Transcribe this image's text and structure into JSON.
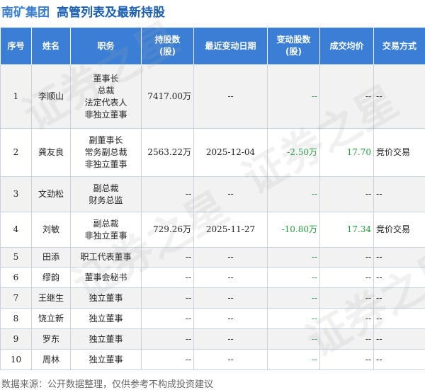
{
  "title": {
    "company": "南矿集团",
    "text": "高管列表及最新持股"
  },
  "watermark": "证券之星",
  "columns": [
    "序号",
    "姓名",
    "职务",
    "持股数\n(股)",
    "最近变动日期",
    "变动股数\n(股)",
    "成交均价",
    "交易方式"
  ],
  "rows": [
    {
      "no": "1",
      "name": "李顺山",
      "roles": [
        "董事长",
        "总裁",
        "法定代表人",
        "非独立董事"
      ],
      "shares": "7417.00万",
      "date": "--",
      "change": "--",
      "price": "--",
      "method": "--"
    },
    {
      "no": "2",
      "name": "龚友良",
      "roles": [
        "副董事长",
        "常务副总裁",
        "非独立董事"
      ],
      "shares": "2563.22万",
      "date": "2025-12-04",
      "change": "-2.50万",
      "price": "17.70",
      "method": "竞价交易"
    },
    {
      "no": "3",
      "name": "文劲松",
      "roles": [
        "副总裁",
        "财务总监"
      ],
      "shares": "--",
      "date": "--",
      "change": "--",
      "price": "--",
      "method": "--"
    },
    {
      "no": "4",
      "name": "刘敏",
      "roles": [
        "副总裁",
        "非独立董事"
      ],
      "shares": "729.26万",
      "date": "2025-11-27",
      "change": "-10.80万",
      "price": "17.34",
      "method": "竞价交易"
    },
    {
      "no": "5",
      "name": "田添",
      "roles": [
        "职工代表董事"
      ],
      "shares": "--",
      "date": "--",
      "change": "--",
      "price": "--",
      "method": "--"
    },
    {
      "no": "6",
      "name": "缪韵",
      "roles": [
        "董事会秘书"
      ],
      "shares": "--",
      "date": "--",
      "change": "--",
      "price": "--",
      "method": "--"
    },
    {
      "no": "7",
      "name": "王继生",
      "roles": [
        "独立董事"
      ],
      "shares": "--",
      "date": "--",
      "change": "--",
      "price": "--",
      "method": "--"
    },
    {
      "no": "8",
      "name": "饶立新",
      "roles": [
        "独立董事"
      ],
      "shares": "--",
      "date": "--",
      "change": "--",
      "price": "--",
      "method": "--"
    },
    {
      "no": "9",
      "name": "罗东",
      "roles": [
        "独立董事"
      ],
      "shares": "--",
      "date": "--",
      "change": "--",
      "price": "--",
      "method": "--"
    },
    {
      "no": "10",
      "name": "周林",
      "roles": [
        "独立董事"
      ],
      "shares": "--",
      "date": "--",
      "change": "--",
      "price": "--",
      "method": "--"
    }
  ],
  "footer": "数据来源：公开数据整理，仅供参考不构成投资建议",
  "colors": {
    "header_bg": "#3a7fd5",
    "title": "#1a5fb4",
    "negative": "#1e9e3a",
    "price": "#1e9e3a"
  }
}
